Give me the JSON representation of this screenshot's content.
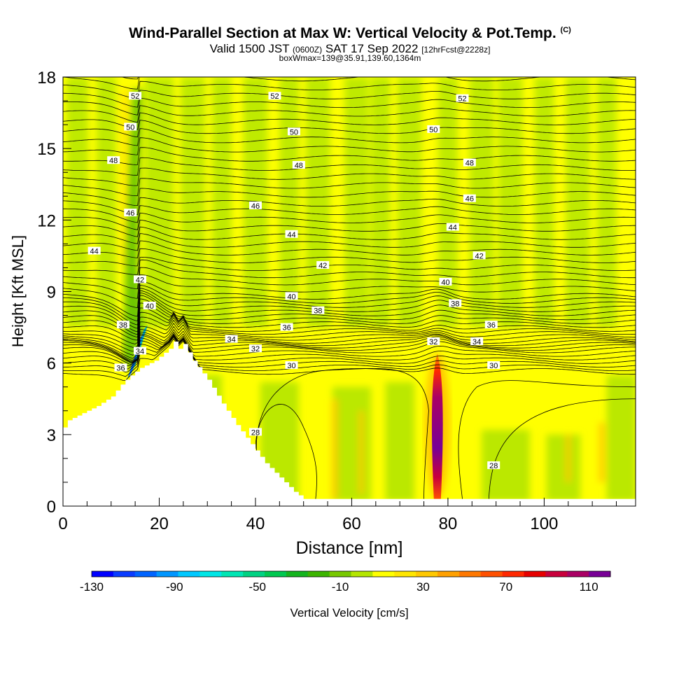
{
  "header": {
    "title": "Wind-Parallel Section at Max W: Vertical Velocity & Pot.Temp.",
    "copyright": "(C)",
    "valid_prefix": "Valid 1500 JST",
    "valid_zulu": "(0600Z)",
    "valid_date": "SAT 17 Sep 2022",
    "forecast": "[12hrFcst@2228z]",
    "box_info": "boxWmax=139@35.91,139.60,1364m"
  },
  "colors": {
    "background_field": "#ffff00",
    "terrain": "#ffffff",
    "contour": "#000000"
  },
  "chart_data": {
    "type": "heatmap",
    "xlabel": "Distance [nm]",
    "ylabel": "Height [Kft MSL]",
    "xlim": [
      0,
      119
    ],
    "ylim": [
      0,
      18
    ],
    "x_ticks": [
      "0",
      "20",
      "40",
      "60",
      "80",
      "100"
    ],
    "x_tick_values": [
      0,
      20,
      40,
      60,
      80,
      100
    ],
    "y_ticks": [
      "0",
      "3",
      "6",
      "9",
      "12",
      "15",
      "18"
    ],
    "y_tick_values": [
      0,
      3,
      6,
      9,
      12,
      15,
      18
    ],
    "colorbar": {
      "label": "Vertical Velocity [cm/s]",
      "tick_labels": [
        "-130",
        "-90",
        "-50",
        "-10",
        "30",
        "70",
        "110"
      ],
      "tick_values": [
        -130,
        -90,
        -50,
        -10,
        30,
        70,
        110
      ],
      "colors": [
        "#0000ff",
        "#0a3cff",
        "#0064ff",
        "#0096ff",
        "#00c8ff",
        "#00e6e6",
        "#00e6b4",
        "#00d282",
        "#00c850",
        "#14b41e",
        "#3cb400",
        "#78c800",
        "#b4e600",
        "#ffff00",
        "#ffe600",
        "#ffc800",
        "#ffa000",
        "#ff7800",
        "#ff5000",
        "#ff2800",
        "#e60000",
        "#c8003c",
        "#aa0064",
        "#780096"
      ]
    },
    "terrain_profile": {
      "x": [
        0,
        1,
        4,
        7,
        10,
        12,
        13.5,
        16,
        19,
        22,
        23,
        24,
        25,
        27,
        30,
        33,
        36,
        39,
        42,
        45,
        48,
        50,
        51
      ],
      "height": [
        3.3,
        3.6,
        3.9,
        4.2,
        4.6,
        5.1,
        5.4,
        5.8,
        6.1,
        6.6,
        6.9,
        6.6,
        6.8,
        6.1,
        5.3,
        4.3,
        3.4,
        2.6,
        1.8,
        1.2,
        0.6,
        0.3,
        0.3
      ]
    },
    "updraft": {
      "x": 77.8,
      "height_range": [
        0.3,
        6.4
      ],
      "max_w": 139
    },
    "theta_contours": [
      {
        "value": 28,
        "labels": [
          {
            "x": 40,
            "y": 3.1
          },
          {
            "x": 89.5,
            "y": 1.7
          }
        ]
      },
      {
        "value": 30,
        "labels": [
          {
            "x": 47.5,
            "y": 5.9
          },
          {
            "x": 89.5,
            "y": 5.9
          }
        ]
      },
      {
        "value": 32,
        "labels": [
          {
            "x": 40,
            "y": 6.6
          },
          {
            "x": 77,
            "y": 6.9
          }
        ]
      },
      {
        "value": 34,
        "labels": [
          {
            "x": 16,
            "y": 6.5
          },
          {
            "x": 35,
            "y": 7.0
          },
          {
            "x": 86,
            "y": 6.9
          }
        ]
      },
      {
        "value": 36,
        "labels": [
          {
            "x": 12,
            "y": 5.8
          },
          {
            "x": 46.5,
            "y": 7.5
          },
          {
            "x": 89,
            "y": 7.6
          }
        ]
      },
      {
        "value": 38,
        "labels": [
          {
            "x": 12.5,
            "y": 7.6
          },
          {
            "x": 53,
            "y": 8.2
          },
          {
            "x": 81.5,
            "y": 8.5
          }
        ]
      },
      {
        "value": 40,
        "labels": [
          {
            "x": 18,
            "y": 8.4
          },
          {
            "x": 47.5,
            "y": 8.8
          },
          {
            "x": 79.5,
            "y": 9.4
          }
        ]
      },
      {
        "value": 42,
        "labels": [
          {
            "x": 16,
            "y": 9.5
          },
          {
            "x": 54,
            "y": 10.1
          },
          {
            "x": 86.5,
            "y": 10.5
          }
        ]
      },
      {
        "value": 44,
        "labels": [
          {
            "x": 6.5,
            "y": 10.7
          },
          {
            "x": 47.5,
            "y": 11.4
          },
          {
            "x": 81,
            "y": 11.7
          }
        ]
      },
      {
        "value": 46,
        "labels": [
          {
            "x": 14,
            "y": 12.3
          },
          {
            "x": 40,
            "y": 12.6
          },
          {
            "x": 84.5,
            "y": 12.9
          }
        ]
      },
      {
        "value": 48,
        "labels": [
          {
            "x": 10.5,
            "y": 14.5
          },
          {
            "x": 49,
            "y": 14.3
          },
          {
            "x": 84.5,
            "y": 14.4
          }
        ]
      },
      {
        "value": 50,
        "labels": [
          {
            "x": 14,
            "y": 15.9
          },
          {
            "x": 48,
            "y": 15.7
          },
          {
            "x": 77,
            "y": 15.8
          }
        ]
      },
      {
        "value": 52,
        "labels": [
          {
            "x": 15,
            "y": 17.2
          },
          {
            "x": 44,
            "y": 17.2
          },
          {
            "x": 83,
            "y": 17.1
          }
        ]
      }
    ]
  }
}
